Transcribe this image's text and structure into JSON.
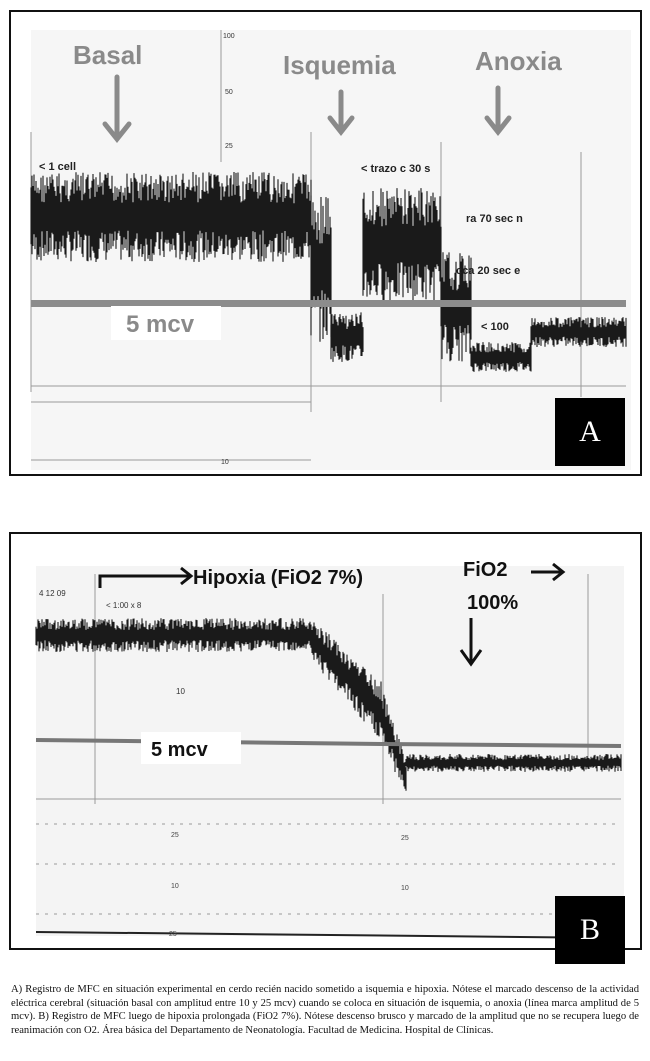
{
  "figure": {
    "panel_a": {
      "letter": "A",
      "phase_labels": [
        "Basal",
        "Isquemia",
        "Anoxia"
      ],
      "scale_label": "5 mcv",
      "scale_texts": [
        "100",
        "50",
        "25",
        "10"
      ],
      "trace_texts": [
        "< 1 cell",
        "< trazo c 30 s",
        "ra 70 sec n",
        "cca 20 sec e",
        "< 100"
      ]
    },
    "panel_b": {
      "letter": "B",
      "hypoxia_label": "Hipoxia (FiO2 7%)",
      "fio2_label": "FiO2",
      "fio2_value": "100%",
      "scale_label": "5 mcv",
      "trace_texts": [
        "4 12 09",
        "< 1:00 x 8",
        "10"
      ],
      "scale_texts": [
        "25",
        "10",
        "25",
        "10",
        "25"
      ]
    }
  },
  "caption": "A) Registro de MFC en situación experimental en cerdo recién nacido sometido a isquemia e hipoxia. Nótese el marcado descenso de la actividad eléctrica cerebral (situación basal con amplitud entre 10 y 25 mcv) cuando se coloca en situación de isquemia, o anoxia (línea marca amplitud de 5 mcv). B) Registro de MFC luego de hipoxia prolongada (FiO2 7%). Nótese descenso brusco y marcado de la amplitud que no se recupera luego de reanimación con O2. Área básica del Departamento de Neonatología. Facultad de Medicina. Hospital de Clínicas.",
  "colors": {
    "trace": "#1a1a1a",
    "label_gray": "#8a8a8a",
    "scale_line": "#8c8c8c"
  }
}
